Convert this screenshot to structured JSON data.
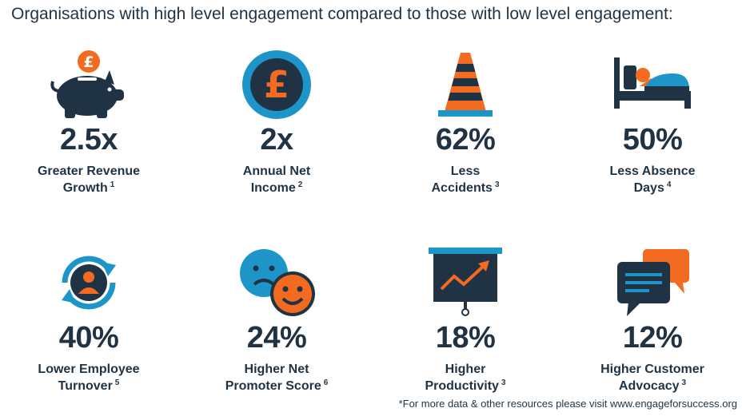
{
  "title": "Organisations with high level engagement compared to those with low level engagement:",
  "colors": {
    "navy": "#1f3344",
    "orange": "#f26b21",
    "blue": "#1e95c9"
  },
  "stats": [
    {
      "icon": "piggy-bank-icon",
      "value": "2.5x",
      "line1": "Greater Revenue",
      "line2": "Growth",
      "ref": "1"
    },
    {
      "icon": "pound-coin-icon",
      "value": "2x",
      "line1": "Annual Net",
      "line2": "Income",
      "ref": "2"
    },
    {
      "icon": "traffic-cone-icon",
      "value": "62%",
      "line1": "Less",
      "line2": "Accidents",
      "ref": "3"
    },
    {
      "icon": "person-in-bed-icon",
      "value": "50%",
      "line1": "Less Absence",
      "line2": "Days",
      "ref": "4"
    },
    {
      "icon": "employee-turnover-icon",
      "value": "40%",
      "line1": "Lower Employee",
      "line2": "Turnover",
      "ref": "5"
    },
    {
      "icon": "smiley-faces-icon",
      "value": "24%",
      "line1": "Higher Net",
      "line2": "Promoter Score",
      "ref": "6"
    },
    {
      "icon": "presentation-chart-icon",
      "value": "18%",
      "line1": "Higher",
      "line2": "Productivity",
      "ref": "3"
    },
    {
      "icon": "speech-bubbles-icon",
      "value": "12%",
      "line1": "Higher Customer",
      "line2": "Advocacy",
      "ref": "3"
    }
  ],
  "footnote": "*For more data & other resources please visit www.engageforsuccess.org"
}
